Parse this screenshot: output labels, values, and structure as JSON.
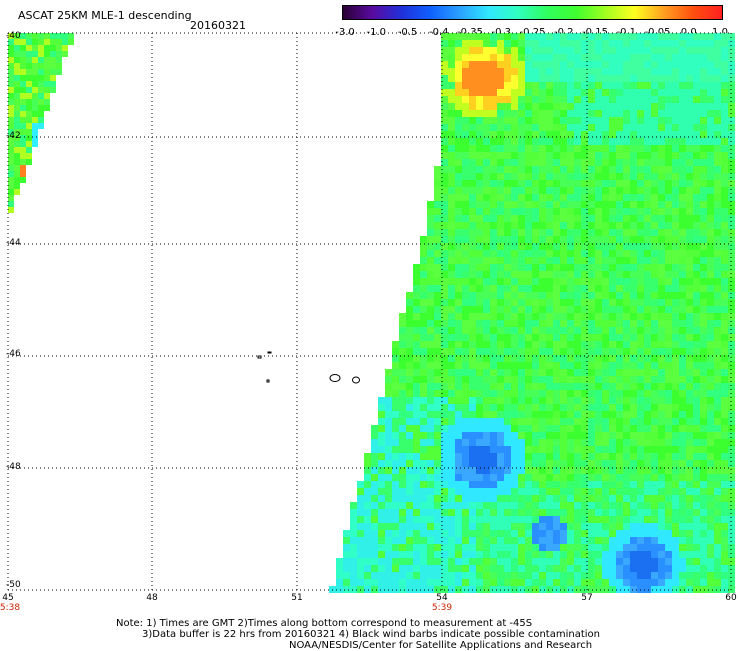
{
  "header": {
    "title": "ASCAT 25KM MLE-1 descending",
    "date": "20160321"
  },
  "colorbar": {
    "ticks": [
      "-3.0",
      "-1.0",
      "-0.5",
      "-0.4",
      "-0.35",
      "-0.3",
      "-0.25",
      "-0.2",
      "-0.15",
      "-0.1",
      "-0.05",
      "0.0",
      "1.0"
    ],
    "colors": [
      "#2a0033",
      "#5a0aa0",
      "#2030d8",
      "#1060ff",
      "#2aa0ff",
      "#30e8ff",
      "#30ffc0",
      "#30ff60",
      "#40ff30",
      "#a0ff20",
      "#ffff20",
      "#ffa020",
      "#ff5010",
      "#ff2020"
    ]
  },
  "axes": {
    "lat_labels": [
      "-40",
      "-42",
      "-44",
      "-46",
      "-48",
      "-50"
    ],
    "lon_labels": [
      "45",
      "48",
      "51",
      "54",
      "57",
      "60"
    ],
    "time_labels": [
      "5:38",
      "5:39"
    ]
  },
  "notes": {
    "line1": "Note: 1) Times are GMT 2)Times along bottom correspond to measurement at -45S",
    "line2": "3)Data buffer is 22 hrs from 20160321 4) Black wind barbs indicate possible contamination",
    "line3": "NOAA/NESDIS/Center for Satellite Applications and Research"
  }
}
